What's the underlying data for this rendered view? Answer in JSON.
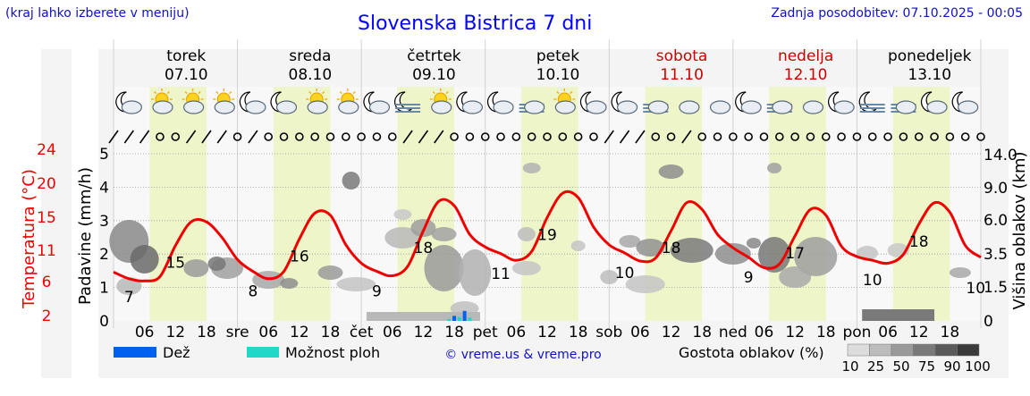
{
  "header": {
    "hint": "(kraj lahko izberete v meniju)",
    "title": "Slovenska Bistrica 7 dni",
    "updated": "Zadnja posodobitev: 07.10.2025 - 00:05"
  },
  "days": [
    {
      "name": "torek",
      "date": "07.10",
      "weekend": false,
      "abbr": ""
    },
    {
      "name": "sreda",
      "date": "08.10",
      "weekend": false,
      "abbr": "sre"
    },
    {
      "name": "četrtek",
      "date": "09.10",
      "weekend": false,
      "abbr": "čet"
    },
    {
      "name": "petek",
      "date": "10.10",
      "weekend": false,
      "abbr": "pet"
    },
    {
      "name": "sobota",
      "date": "11.10",
      "weekend": true,
      "abbr": "sob"
    },
    {
      "name": "nedelja",
      "date": "12.10",
      "weekend": true,
      "abbr": "ned"
    },
    {
      "name": "ponedeljek",
      "date": "13.10",
      "weekend": false,
      "abbr": "pon"
    }
  ],
  "colors": {
    "temperature": "#ee0000",
    "weekend": "#cc0000",
    "daytime": "#eef5c8",
    "rain": "#0060f0",
    "showers": "#20d8c8",
    "text_blue": "#1010c8"
  },
  "chart_data": {
    "type": "line",
    "x_unit": "hour",
    "x_ticks": [
      "06",
      "12",
      "18"
    ],
    "left_axis": {
      "label": "Padavine (mm/h)",
      "ticks": [
        0,
        1,
        2,
        3,
        4,
        5
      ],
      "ylim": [
        0,
        5
      ]
    },
    "temp_axis": {
      "label": "Temperatura (°C)",
      "ticks": [
        2,
        6,
        11,
        15,
        20,
        24
      ]
    },
    "right_axis": {
      "label": "Višina oblakov (km)",
      "ticks": [
        0,
        1.5,
        3.5,
        6.0,
        9.0,
        14.0
      ]
    },
    "temperature": {
      "x": [
        0,
        3,
        6,
        9,
        12,
        15,
        18,
        21,
        24,
        27,
        30,
        33,
        36,
        39,
        42,
        45,
        48,
        51,
        54,
        57,
        60,
        63,
        66,
        69,
        72,
        75,
        78,
        81,
        84,
        87,
        90,
        93,
        96,
        99,
        102,
        105,
        108,
        111,
        114,
        117,
        120,
        123,
        126,
        129,
        132,
        135,
        138,
        141,
        144,
        147,
        150,
        153,
        156,
        159,
        162,
        165,
        168
      ],
      "values": [
        8.5,
        7.6,
        7.3,
        7.9,
        12.1,
        15.3,
        15.3,
        13.2,
        10.2,
        8.6,
        7.6,
        8.6,
        13.0,
        16.5,
        16.2,
        12.2,
        9.7,
        8.6,
        8.0,
        9.3,
        14.1,
        18.1,
        17.5,
        13.6,
        11.9,
        11.0,
        10.1,
        11.3,
        15.9,
        19.2,
        18.6,
        14.6,
        12.2,
        11.1,
        10.0,
        10.4,
        14.1,
        17.9,
        17.0,
        13.6,
        11.8,
        10.5,
        9.1,
        9.6,
        13.4,
        17.0,
        16.2,
        12.0,
        10.6,
        10.1,
        9.7,
        10.9,
        15.0,
        17.9,
        16.6,
        12.1,
        10.5
      ]
    },
    "temp_labels": [
      {
        "x": 3,
        "value": "7"
      },
      {
        "x": 12,
        "value": "15"
      },
      {
        "x": 27,
        "value": "8"
      },
      {
        "x": 36,
        "value": "16"
      },
      {
        "x": 51,
        "value": "9"
      },
      {
        "x": 60,
        "value": "18"
      },
      {
        "x": 75,
        "value": "11"
      },
      {
        "x": 84,
        "value": "19"
      },
      {
        "x": 99,
        "value": "10"
      },
      {
        "x": 108,
        "value": "18"
      },
      {
        "x": 123,
        "value": "9"
      },
      {
        "x": 132,
        "value": "17"
      },
      {
        "x": 147,
        "value": "10"
      },
      {
        "x": 156,
        "value": "18"
      },
      {
        "x": 167,
        "value": "10"
      }
    ],
    "precipitation": {
      "x": [
        65,
        66,
        67,
        68,
        69
      ],
      "values": [
        0.06,
        0.15,
        0.12,
        0.3,
        0.1
      ]
    },
    "weather_icons": [
      "moon-cloud",
      "sun-cloud",
      "sun-cloud",
      "sun-cloud",
      "moon-cloud",
      "moon-cloud",
      "sun-cloud",
      "sun-cloud",
      "moon-cloud",
      "moon-fog",
      "sun-cloud",
      "moon-cloud",
      "moon-cloud",
      "fog-cloud",
      "sun-cloud",
      "moon-cloud",
      "moon-cloud",
      "fog-cloud",
      "cloud",
      "cloud",
      "moon-cloud",
      "fog-cloud",
      "cloud",
      "moon-cloud",
      "moon-fog",
      "fog-cloud",
      "moon-cloud",
      "moon-cloud"
    ],
    "cloud_density": {
      "label": "Gostota oblakov (%)",
      "ticks": [
        "10",
        "25",
        "50",
        "75",
        "90",
        "100"
      ],
      "colors": [
        "#dcdcdc",
        "#bcbcbc",
        "#9a9a9a",
        "#7a7a7a",
        "#5a5a5a",
        "#3a3a3a"
      ]
    }
  },
  "legend": {
    "rain": "Dež",
    "showers": "Možnost ploh"
  },
  "credit": "© vreme.us & vreme.pro"
}
